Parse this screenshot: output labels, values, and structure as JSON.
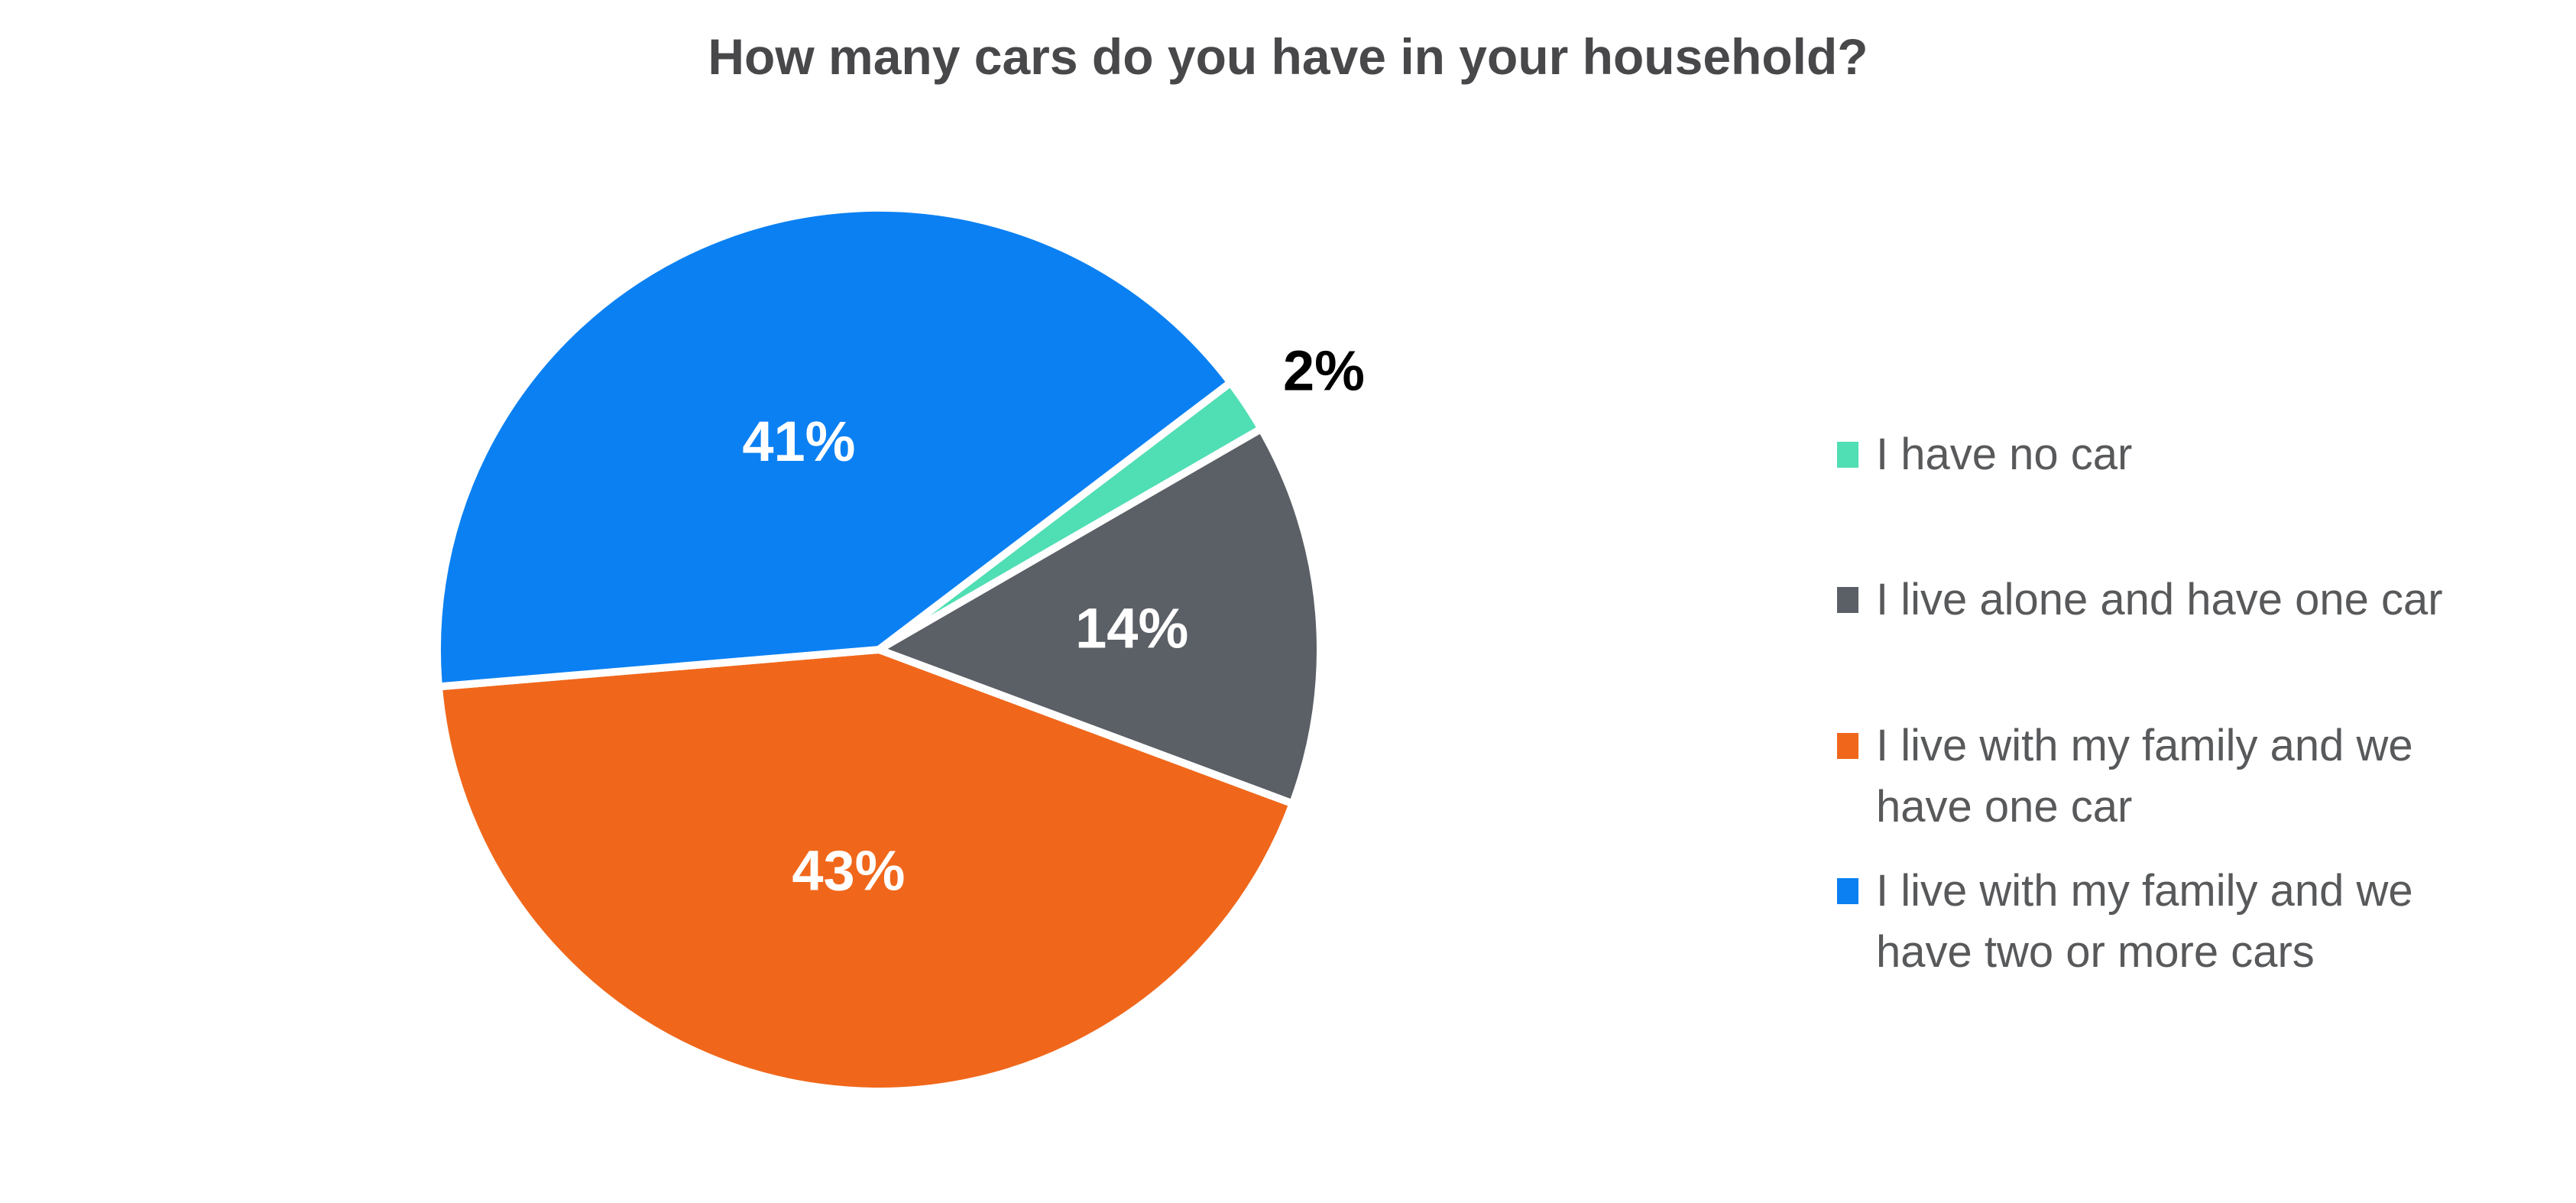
{
  "chart_data": {
    "type": "pie",
    "title": "How many cars do you have in your household?",
    "categories": [
      "I have no car",
      "I live alone and have one car",
      "I live with my family and we have one car",
      "I live with my family and we have two or more cars"
    ],
    "values": [
      2,
      14,
      43,
      41
    ],
    "slices": [
      {
        "label": "I have no car",
        "legend_lines": [
          "I have no car"
        ],
        "value": 2,
        "pct_label": "2%",
        "color": "#50DEB4",
        "pct_label_color": "#000000",
        "pct_label_inside": false
      },
      {
        "label": "I live alone and have one car",
        "legend_lines": [
          "I live alone and have one car"
        ],
        "value": 14,
        "pct_label": "14%",
        "color": "#5B5F66",
        "pct_label_color": "#FFFFFF",
        "pct_label_inside": true
      },
      {
        "label": "I live with my family and we have one car",
        "legend_lines": [
          "I live with my family and we",
          "have one car"
        ],
        "value": 43,
        "pct_label": "43%",
        "color": "#F0671B",
        "pct_label_color": "#FFFFFF",
        "pct_label_inside": true
      },
      {
        "label": "I live with my family and we have two or more cars",
        "legend_lines": [
          "I live with my family and we",
          "have two or more cars"
        ],
        "value": 41,
        "pct_label": "41%",
        "color": "#0B80F2",
        "pct_label_color": "#FFFFFF",
        "pct_label_inside": true
      }
    ],
    "legend_position": "right",
    "rotation_deg_clockwise_from_top": 52.8,
    "slice_separator_color": "#FFFFFF",
    "background_color": "#FFFFFF",
    "title_color": "#48484B",
    "legend_text_color": "#58595B"
  }
}
